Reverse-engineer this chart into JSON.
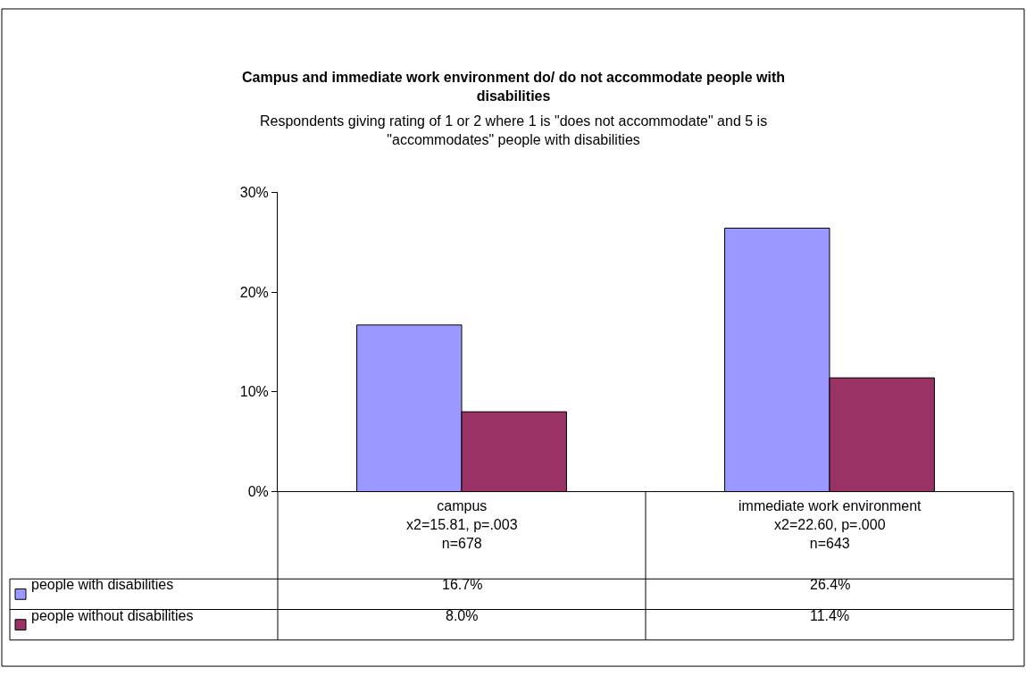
{
  "chart_data": {
    "type": "bar",
    "title": "Campus and immediate work environment do/ do not accommodate people with disabilities",
    "subtitle": "Respondents giving rating of 1 or 2 where 1 is \"does not accommodate\" and 5 is \"accommodates\" people with disabilities",
    "categories": [
      "campus\nx2=15.81, p=.003\nn=678",
      "immediate work environment\nx2=22.60, p=.000\nn=643"
    ],
    "series": [
      {
        "name": "people with disabilities",
        "color": "#9999ff",
        "values": [
          16.7,
          26.4
        ],
        "value_labels": [
          "16.7%",
          "26.4%"
        ]
      },
      {
        "name": "people without disabilities",
        "color": "#993366",
        "values": [
          8.0,
          11.4
        ],
        "value_labels": [
          "8.0%",
          "11.4%"
        ]
      }
    ],
    "ylim": [
      0,
      30
    ],
    "yticks": [
      {
        "value": 0,
        "label": "0%"
      },
      {
        "value": 10,
        "label": "10%"
      },
      {
        "value": 20,
        "label": "20%"
      },
      {
        "value": 30,
        "label": "30%"
      }
    ],
    "legend": "bottom",
    "data_labels": true
  }
}
